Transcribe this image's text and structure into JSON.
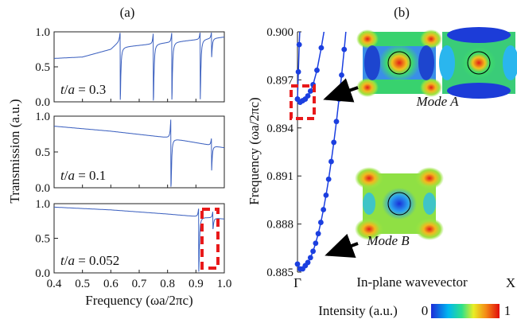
{
  "colors": {
    "trace": "#3a5fbf",
    "band": "#1b3fe0",
    "highlight": "#e8191a",
    "arrow": "#000000"
  },
  "labels": {
    "panel_a": "(a)",
    "panel_b": "(b)",
    "mode_a": "Mode A",
    "mode_b": "Mode B",
    "intensity_label": "Intensity (a.u.)",
    "intensity_min": "0",
    "intensity_max": "1"
  },
  "chart_data": [
    {
      "type": "line",
      "panel": "(a)",
      "xlabel": "Frequency (ωa/2πc)",
      "ylabel": "Transmission (a.u.)",
      "xlim": [
        0.4,
        1.0
      ],
      "x_ticks": [
        "0.4",
        "0.5",
        "0.6",
        "0.7",
        "0.8",
        "0.9",
        "1.0"
      ],
      "y_ticks": [
        "0.0",
        "0.5",
        "1.0"
      ],
      "subplots": [
        {
          "annotation": "t/a = 0.3",
          "ylim": [
            0,
            1
          ],
          "baseline": [
            [
              0.4,
              0.62
            ],
            [
              0.5,
              0.64
            ],
            [
              0.6,
              0.75
            ],
            [
              0.63,
              0.86
            ]
          ],
          "resonances": [
            {
              "x": 0.633,
              "depth": 0.98,
              "peak": 1.0
            },
            {
              "x": 0.75,
              "depth": 0.98,
              "peak": 1.0
            },
            {
              "x": 0.815,
              "depth": 0.98,
              "peak": 1.0
            },
            {
              "x": 0.915,
              "depth": 0.98,
              "peak": 1.0
            },
            {
              "x": 0.955,
              "depth": 0.3,
              "peak": 1.0
            }
          ]
        },
        {
          "annotation": "t/a = 0.1",
          "ylim": [
            0,
            1
          ],
          "baseline": [
            [
              0.4,
              0.86
            ],
            [
              0.6,
              0.79
            ],
            [
              0.8,
              0.7
            ],
            [
              1.0,
              0.56
            ]
          ],
          "resonances": [
            {
              "x": 0.812,
              "depth": 0.98,
              "peak": 1.0
            },
            {
              "x": 0.955,
              "depth": 0.6,
              "peak": 0.7
            }
          ]
        },
        {
          "annotation": "t/a = 0.052",
          "ylim": [
            0,
            1
          ],
          "baseline": [
            [
              0.4,
              0.95
            ],
            [
              0.6,
              0.91
            ],
            [
              0.8,
              0.85
            ],
            [
              1.0,
              0.78
            ]
          ],
          "resonances": [
            {
              "x": 0.91,
              "depth": 0.98,
              "peak": 0.95
            },
            {
              "x": 0.96,
              "depth": 0.2,
              "peak": 0.9
            }
          ]
        }
      ]
    },
    {
      "type": "scatter",
      "panel": "(b)",
      "xlabel": "In-plane wavevector",
      "ylabel": "Frequency (ωa/2πc)",
      "x_ticks": [
        "Γ",
        "X"
      ],
      "ylim": [
        0.885,
        0.9
      ],
      "y_ticks": [
        "0.885",
        "0.888",
        "0.891",
        "0.894",
        "0.897",
        "0.900"
      ],
      "series": [
        {
          "label": "Mode A band",
          "points": [
            [
              0.0,
              0.8958
            ],
            [
              0.012,
              0.8956
            ],
            [
              0.024,
              0.8957
            ],
            [
              0.036,
              0.8958
            ],
            [
              0.048,
              0.896
            ],
            [
              0.06,
              0.8963
            ],
            [
              0.072,
              0.8967
            ],
            [
              0.09,
              0.8976
            ],
            [
              0.11,
              0.899
            ],
            [
              0.125,
              0.9002
            ]
          ]
        },
        {
          "label": "Mode A left branch",
          "points": [
            [
              0.0,
              0.8958
            ],
            [
              0.004,
              0.8975
            ],
            [
              0.008,
              0.8992
            ],
            [
              0.012,
              0.9005
            ]
          ]
        },
        {
          "label": "Mode B band",
          "points": [
            [
              0.0,
              0.8855
            ],
            [
              0.012,
              0.8852
            ],
            [
              0.024,
              0.8852
            ],
            [
              0.036,
              0.8854
            ],
            [
              0.048,
              0.8856
            ],
            [
              0.06,
              0.8859
            ],
            [
              0.072,
              0.8863
            ],
            [
              0.084,
              0.8868
            ],
            [
              0.096,
              0.8874
            ],
            [
              0.108,
              0.8881
            ],
            [
              0.12,
              0.8889
            ],
            [
              0.132,
              0.8898
            ],
            [
              0.144,
              0.8908
            ],
            [
              0.156,
              0.8919
            ],
            [
              0.168,
              0.8931
            ],
            [
              0.18,
              0.8944
            ],
            [
              0.192,
              0.8958
            ],
            [
              0.204,
              0.8973
            ],
            [
              0.216,
              0.8989
            ],
            [
              0.225,
              0.9002
            ]
          ]
        }
      ]
    }
  ]
}
